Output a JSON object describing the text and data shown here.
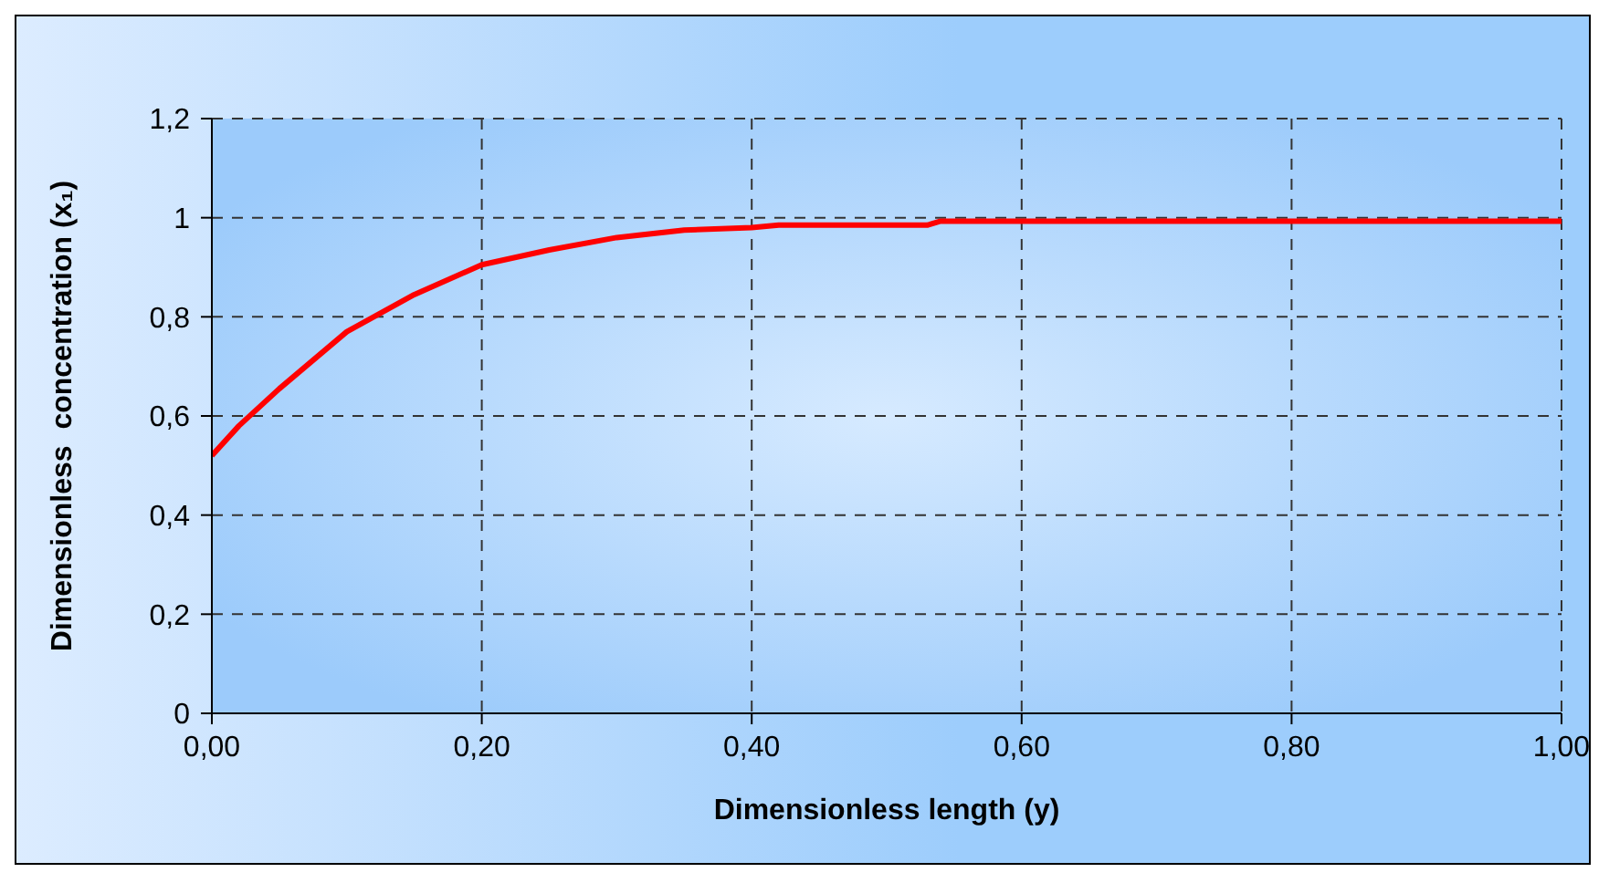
{
  "chart_data": {
    "type": "line",
    "xlabel": "Dimensionless length (y)",
    "ylabel": "Dimensionless  concentration (x₁)",
    "x": [
      0,
      0.02,
      0.05,
      0.1,
      0.15,
      0.2,
      0.25,
      0.3,
      0.35,
      0.4,
      0.42,
      0.53,
      0.54,
      0.7,
      0.85,
      1.0
    ],
    "series": [
      {
        "color": "#ff0000",
        "values": [
          0.52,
          0.58,
          0.655,
          0.77,
          0.845,
          0.905,
          0.935,
          0.96,
          0.975,
          0.98,
          0.985,
          0.985,
          0.993,
          0.993,
          0.993,
          0.993
        ]
      }
    ],
    "xlim": [
      0,
      1
    ],
    "xticks": [
      {
        "value": 0,
        "label": "0,00"
      },
      {
        "value": 0.2,
        "label": "0,20"
      },
      {
        "value": 0.4,
        "label": "0,40"
      },
      {
        "value": 0.6,
        "label": "0,60"
      },
      {
        "value": 0.8,
        "label": "0,80"
      },
      {
        "value": 1,
        "label": "1,00"
      }
    ],
    "ylim": [
      0,
      1.2
    ],
    "yticks": [
      0,
      {
        "value": 0.2,
        "label": "0,2"
      },
      {
        "value": 0.4,
        "label": "0,4"
      },
      {
        "value": 0.6,
        "label": "0,6"
      },
      {
        "value": 0.8,
        "label": "0,8"
      },
      1,
      {
        "value": 1.2,
        "label": "1,2"
      }
    ],
    "grid": true,
    "legend": false,
    "marker": "none",
    "line_style": "solid"
  }
}
